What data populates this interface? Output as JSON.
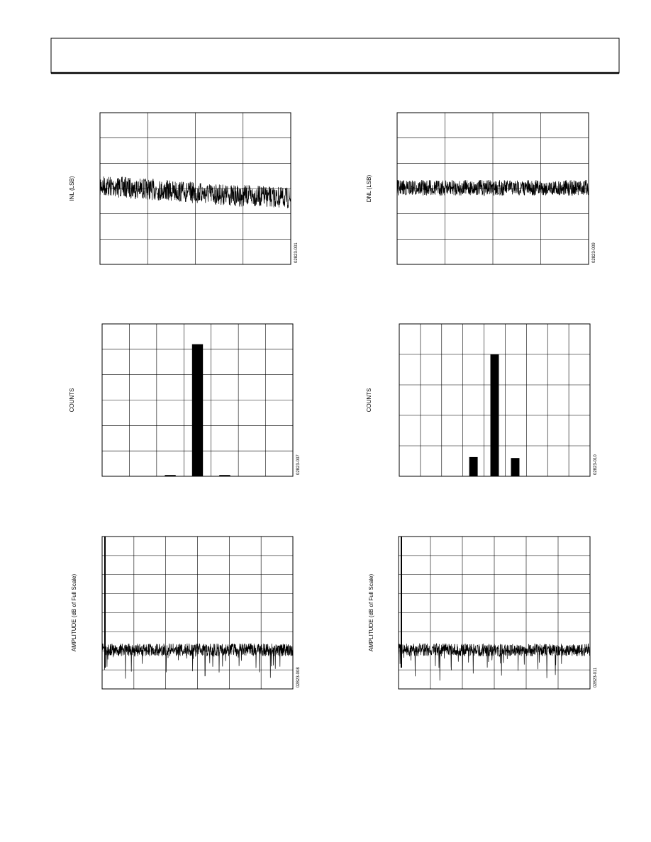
{
  "figures": [
    {
      "y_label": "INL (LSB)",
      "code": "02823-001"
    },
    {
      "y_label": "DNL (LSB)",
      "code": "02823-009"
    },
    {
      "y_label": "COUNTS",
      "code": "02823-007",
      "histogram": {
        "xlim": [
          0,
          7
        ],
        "ylim": [
          0,
          6
        ],
        "x": [
          2.3,
          3.3,
          4.3
        ],
        "width": 0.4,
        "values": [
          0.05,
          5.2,
          0.05
        ]
      }
    },
    {
      "y_label": "COUNTS",
      "code": "02823-010",
      "histogram": {
        "xlim": [
          0,
          9
        ],
        "ylim": [
          0,
          5
        ],
        "x": [
          3.3,
          4.3,
          5.27
        ],
        "width": 0.4,
        "values": [
          0.63,
          4.0,
          0.6
        ]
      }
    },
    {
      "y_label": "AMPLITUDE (dB of Full Scale)",
      "code": "02823-008"
    },
    {
      "y_label": "AMPLITUDE (dB of Full Scale)",
      "code": "02823-011"
    }
  ]
}
